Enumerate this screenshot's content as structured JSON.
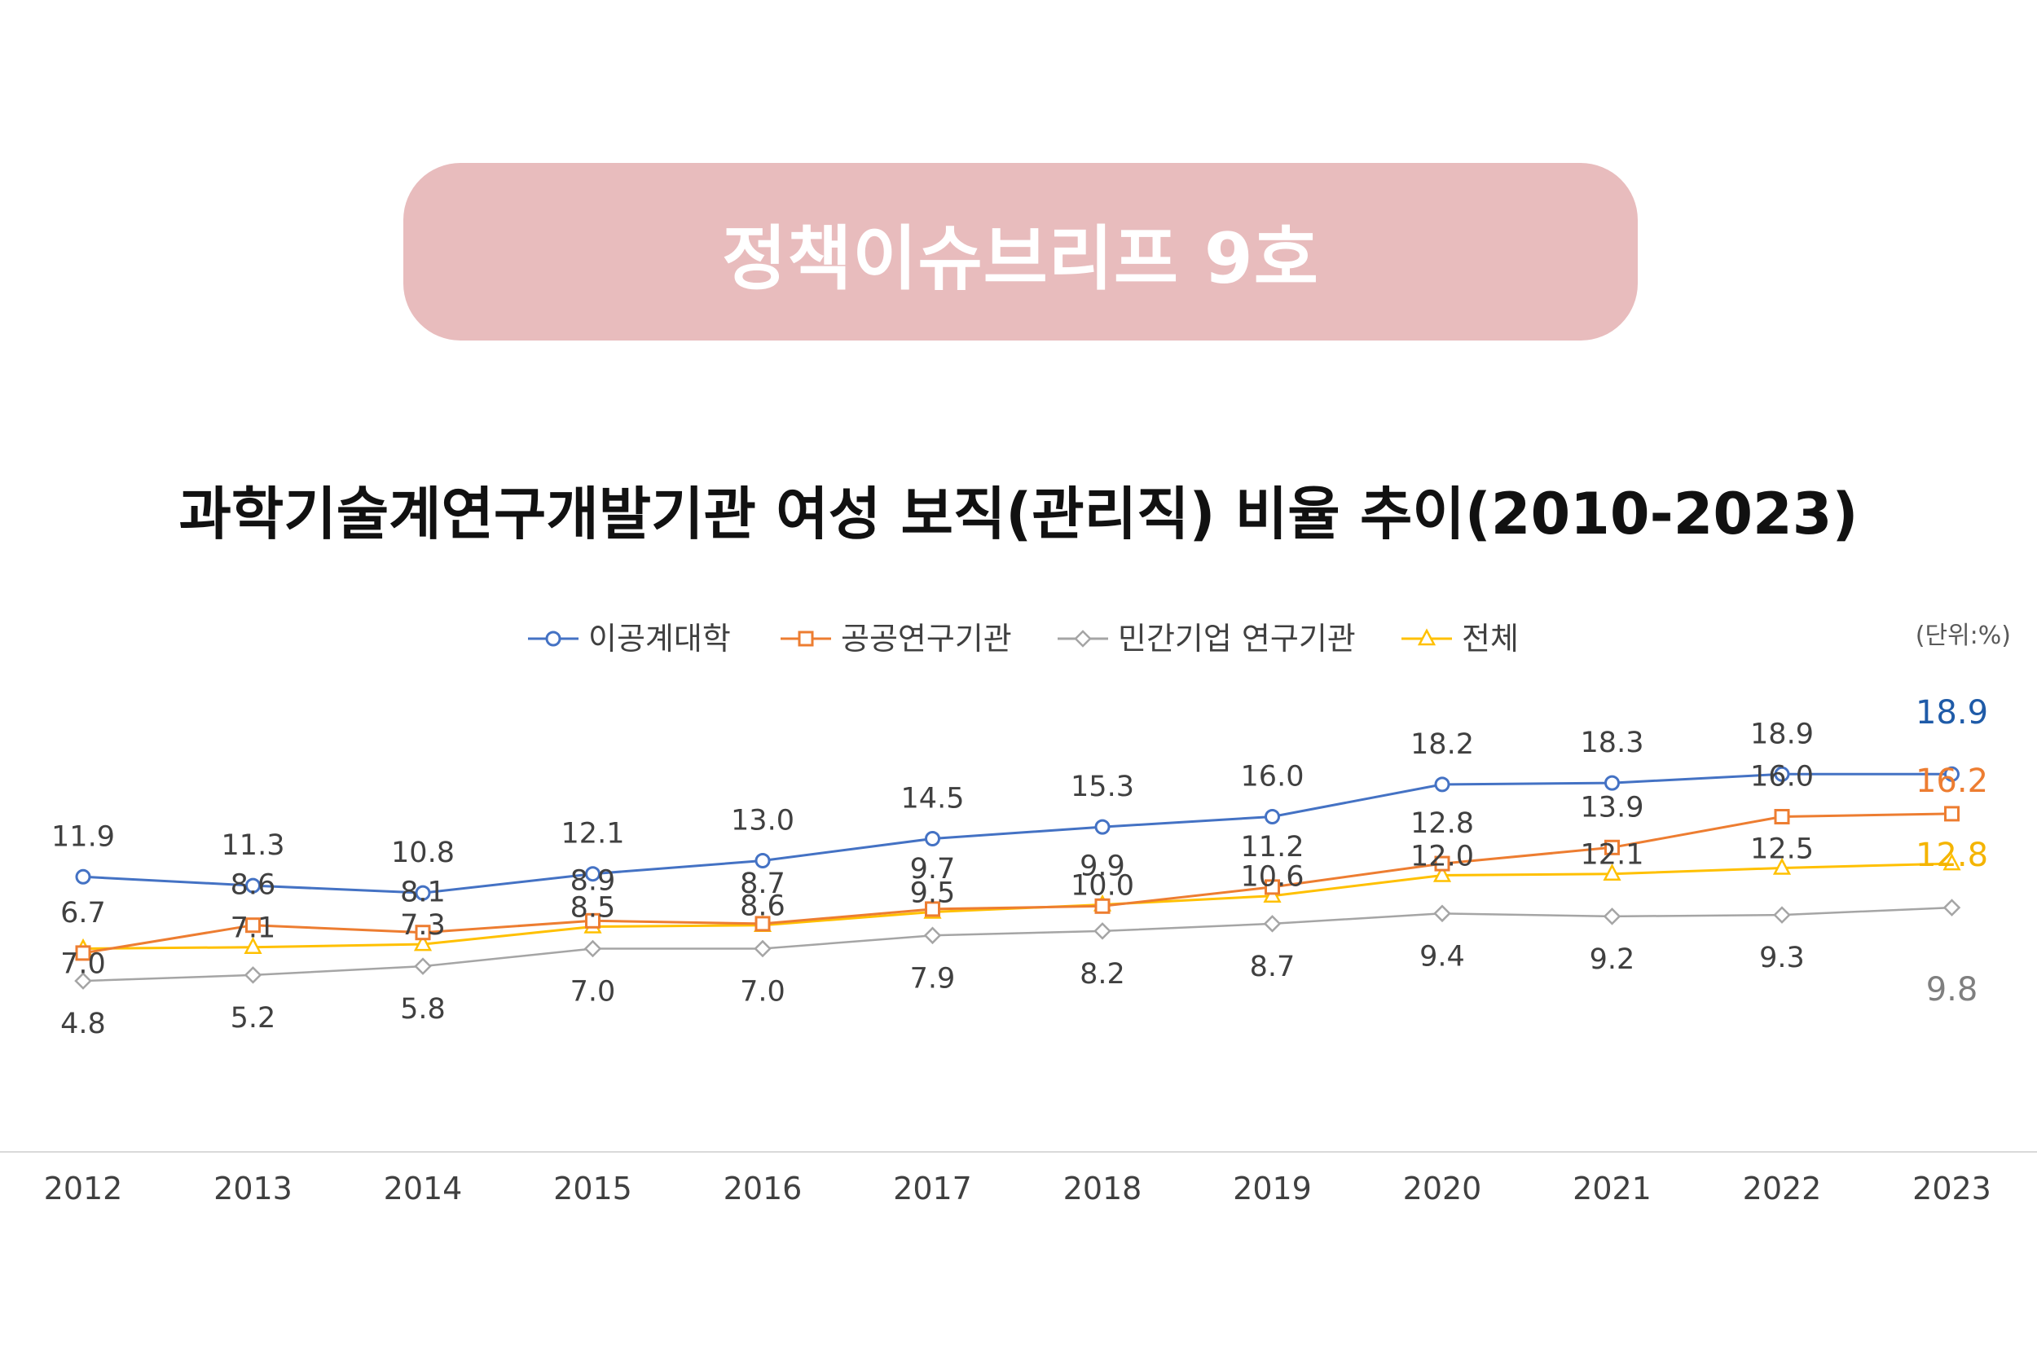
{
  "banner": {
    "label": "정책이슈브리프 9호"
  },
  "title": "과학기술계연구개발기관 여성 보직(관리직) 비율 추이(2010-2023)",
  "unit_note": "(단위:%)",
  "colors": {
    "university": "#4472c4",
    "public": "#ed7d31",
    "private": "#a5a5a5",
    "total": "#ffc000",
    "university_end": "#1f5ba8",
    "private_end": "#7f7f7f",
    "total_end": "#f4b400",
    "banner": "#e8bcbd"
  },
  "chart_data": {
    "type": "line",
    "title": "과학기술계연구개발기관 여성 보직(관리직) 비율 추이(2010-2023)",
    "unit": "(단위:%)",
    "categories": [
      "2012",
      "2013",
      "2014",
      "2015",
      "2016",
      "2017",
      "2018",
      "2019",
      "2020",
      "2021",
      "2022",
      "2023"
    ],
    "series": [
      {
        "name": "이공계대학",
        "key": "university",
        "marker": "circle",
        "values": [
          11.9,
          11.3,
          10.8,
          12.1,
          13.0,
          14.5,
          15.3,
          16.0,
          18.2,
          18.3,
          18.9,
          18.9
        ]
      },
      {
        "name": "공공연구기관",
        "key": "public",
        "marker": "square",
        "values": [
          6.7,
          8.6,
          8.1,
          8.9,
          8.7,
          9.7,
          9.9,
          11.2,
          12.8,
          13.9,
          16.0,
          16.2
        ]
      },
      {
        "name": "민간기업 연구기관",
        "key": "private",
        "marker": "diamond",
        "values": [
          4.8,
          5.2,
          5.8,
          7.0,
          7.0,
          7.9,
          8.2,
          8.7,
          9.4,
          9.2,
          9.3,
          9.8
        ]
      },
      {
        "name": "전체",
        "key": "total",
        "marker": "triangle",
        "values": [
          7.0,
          7.1,
          7.3,
          8.5,
          8.6,
          9.5,
          10.0,
          10.6,
          12.0,
          12.1,
          12.5,
          12.8
        ]
      }
    ],
    "grid": false,
    "legend": "top-center"
  }
}
